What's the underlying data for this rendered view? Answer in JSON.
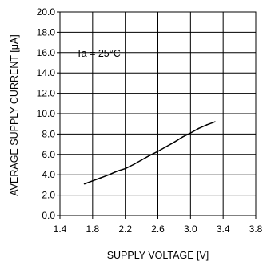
{
  "chart_data": {
    "type": "line",
    "xlabel": "SUPPLY VOLTAGE [V]",
    "ylabel": "AVERAGE SUPPLY CURRENT [μA]",
    "annotation": "Ta = 25°C",
    "xlim": [
      1.4,
      3.8
    ],
    "ylim": [
      0.0,
      20.0
    ],
    "x_ticks": [
      1.4,
      1.8,
      2.2,
      2.6,
      3.0,
      3.4,
      3.8
    ],
    "x_tick_labels": [
      "1.4",
      "1.8",
      "2.2",
      "2.6",
      "3.0",
      "3.4",
      "3.8"
    ],
    "y_ticks": [
      0,
      2,
      4,
      6,
      8,
      10,
      12,
      14,
      16,
      18,
      20
    ],
    "y_tick_labels": [
      "0.0",
      "2.0",
      "4.0",
      "6.0",
      "8.0",
      "10.0",
      "12.0",
      "14.0",
      "16.0",
      "18.0",
      "20.0"
    ],
    "grid": true,
    "series": [
      {
        "color": "#000000",
        "x": [
          1.7,
          1.8,
          1.9,
          2.0,
          2.1,
          2.2,
          2.3,
          2.4,
          2.5,
          2.6,
          2.7,
          2.8,
          2.9,
          3.0,
          3.1,
          3.2,
          3.3
        ],
        "y": [
          3.1,
          3.4,
          3.7,
          4.0,
          4.35,
          4.6,
          5.0,
          5.45,
          5.9,
          6.3,
          6.75,
          7.2,
          7.7,
          8.1,
          8.55,
          8.9,
          9.2
        ]
      }
    ]
  }
}
